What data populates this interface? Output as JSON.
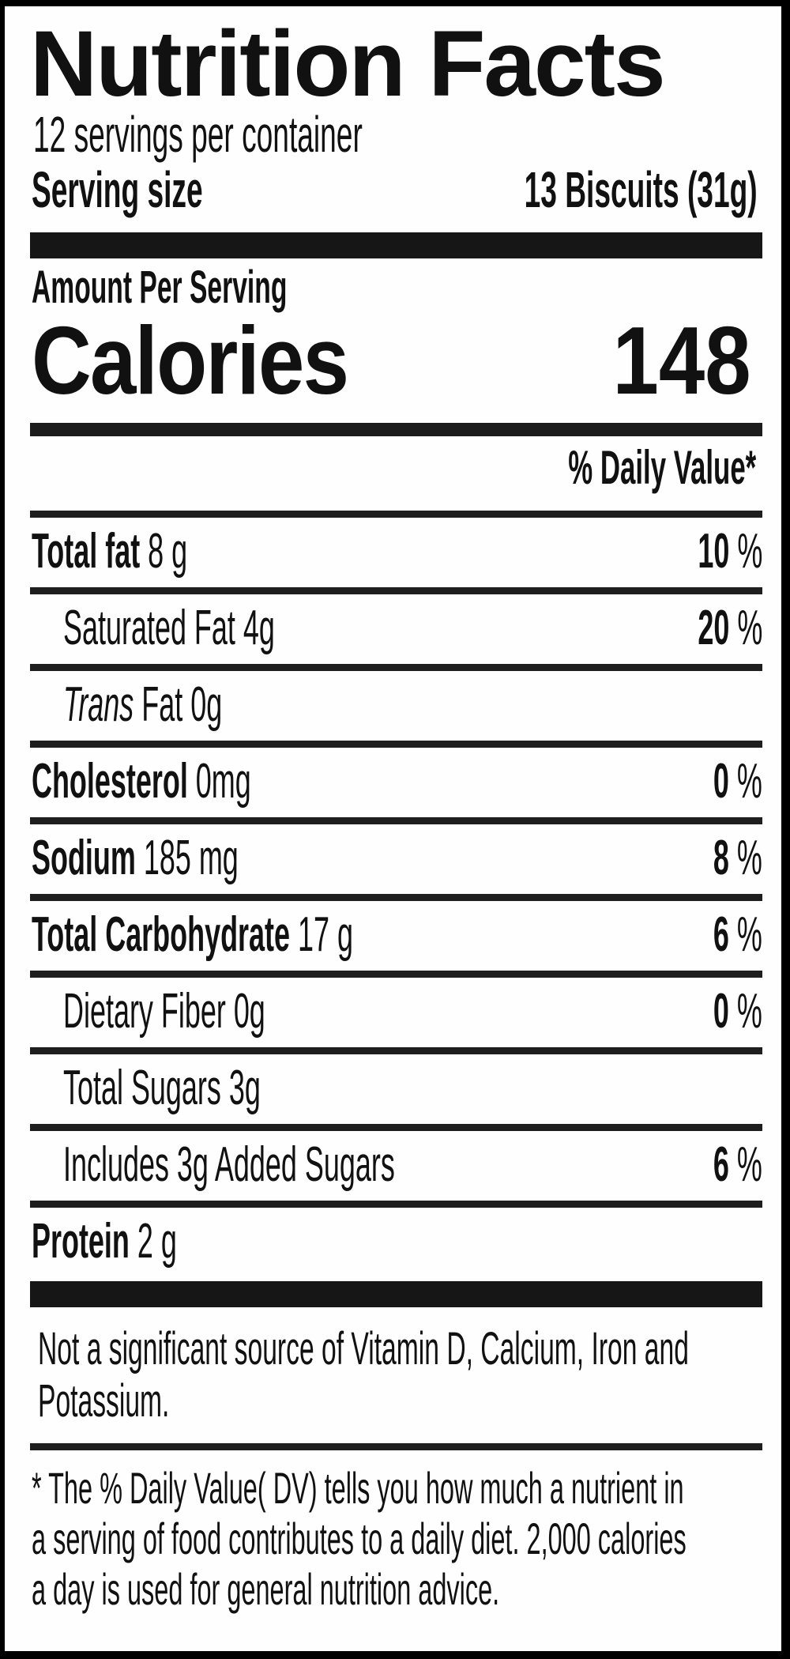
{
  "label": {
    "title": "Nutrition Facts",
    "servings_per_container": "12 servings per container",
    "serving_size_label": "Serving size",
    "serving_size_value": "13 Biscuits (31g)",
    "amount_per_serving": "Amount Per Serving",
    "calories_label": "Calories",
    "calories_value": "148",
    "daily_value_header": "% Daily Value*",
    "rows": [
      {
        "italic": "",
        "bold": "Total fat",
        "rest": " 8 g",
        "pct_num": "10",
        "pct_sign": " %"
      },
      {
        "italic": "",
        "bold": "",
        "rest": "Saturated Fat 4g",
        "pct_num": "20",
        "pct_sign": " %"
      },
      {
        "italic": "Trans",
        "bold": "",
        "rest": " Fat 0g",
        "pct_num": "",
        "pct_sign": ""
      },
      {
        "italic": "",
        "bold": "Cholesterol",
        "rest": " 0mg",
        "pct_num": "0",
        "pct_sign": " %"
      },
      {
        "italic": "",
        "bold": "Sodium",
        "rest": " 185 mg",
        "pct_num": "8",
        "pct_sign": " %"
      },
      {
        "italic": "",
        "bold": "Total Carbohydrate",
        "rest": " 17 g",
        "pct_num": "6",
        "pct_sign": " %"
      },
      {
        "italic": "",
        "bold": "",
        "rest": "Dietary Fiber 0g",
        "pct_num": "0",
        "pct_sign": " %"
      },
      {
        "italic": "",
        "bold": "",
        "rest": "Total Sugars 3g",
        "pct_num": "",
        "pct_sign": ""
      },
      {
        "italic": "",
        "bold": "",
        "rest": "Includes 3g Added Sugars",
        "pct_num": "6",
        "pct_sign": " %"
      },
      {
        "italic": "",
        "bold": "Protein",
        "rest": " 2 g",
        "pct_num": "",
        "pct_sign": ""
      }
    ],
    "note_lines": [
      "Not a significant source of Vitamin D, Calcium, Iron and",
      "Potassium."
    ],
    "footnote_lines": [
      "* The % Daily Value( DV) tells you how much a nutrient in",
      "a serving of food contributes to a daily diet. 2,000 calories",
      "a day is used for general nutrition advice."
    ],
    "colors": {
      "text": "#111111",
      "bars": "#1b1b1b",
      "background": "#fefefe",
      "border": "#000000"
    }
  }
}
